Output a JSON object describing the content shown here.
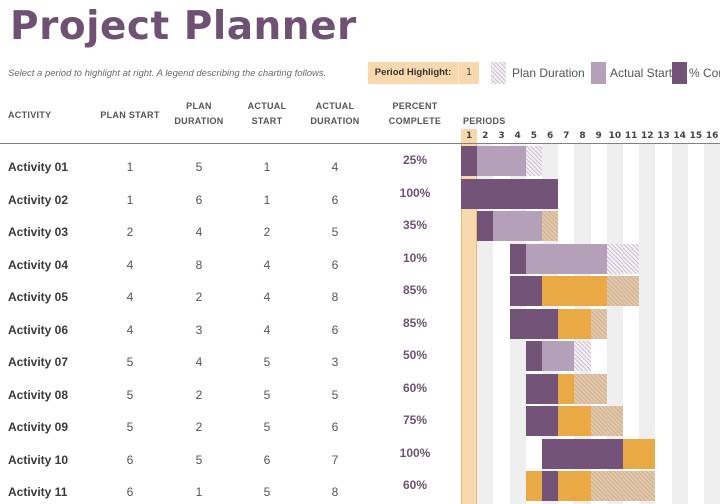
{
  "title": "Project Planner",
  "subtitle": "Select a period to highlight at right.  A legend describing the charting follows.",
  "period_highlight": {
    "label": "Period Highlight:",
    "value": "1"
  },
  "legend": [
    {
      "label": "Plan Duration",
      "code": "P"
    },
    {
      "label": "Actual Start",
      "code": "A"
    },
    {
      "label": "% Complete",
      "code": "D"
    }
  ],
  "headers": {
    "activity": "ACTIVITY",
    "plan_start": "PLAN START",
    "plan_duration": [
      "PLAN",
      "DURATION"
    ],
    "actual_start": [
      "ACTUAL",
      "START"
    ],
    "actual_duration": [
      "ACTUAL",
      "DURATION"
    ],
    "percent_complete": [
      "PERCENT",
      "COMPLETE"
    ],
    "periods": "PERIODS"
  },
  "periods": [
    "1",
    "2",
    "3",
    "4",
    "5",
    "6",
    "7",
    "8",
    "9",
    "10",
    "11",
    "12",
    "13",
    "14",
    "15",
    "16"
  ],
  "colors": {
    "accent": "#6f5273",
    "plan": "#cfc3d3",
    "actual": "#b4a0b9",
    "complete": "#735377",
    "beyond_complete": "#e9a945",
    "beyond_actual": "#d6b99a",
    "highlight": "#f8d9ae"
  },
  "gantt_legend_codes": {
    "P": "plan duration",
    "A": "actual",
    "D": "% complete",
    "O": "% complete beyond plan",
    "T": "actual beyond plan"
  },
  "rows": [
    {
      "activity": "Activity 01",
      "plan_start": "1",
      "plan_duration": "5",
      "actual_start": "1",
      "actual_duration": "4",
      "percent": "25%",
      "cells": "DAAAP..........."
    },
    {
      "activity": "Activity 02",
      "plan_start": "1",
      "plan_duration": "6",
      "actual_start": "1",
      "actual_duration": "6",
      "percent": "100%",
      "cells": "DDDDDD.........."
    },
    {
      "activity": "Activity 03",
      "plan_start": "2",
      "plan_duration": "4",
      "actual_start": "2",
      "actual_duration": "5",
      "percent": "35%",
      "cells": ".DAAAT.........."
    },
    {
      "activity": "Activity 04",
      "plan_start": "4",
      "plan_duration": "8",
      "actual_start": "4",
      "actual_duration": "6",
      "percent": "10%",
      "cells": "...DAAAAAPP....."
    },
    {
      "activity": "Activity 05",
      "plan_start": "4",
      "plan_duration": "2",
      "actual_start": "4",
      "actual_duration": "8",
      "percent": "85%",
      "cells": "...DDOOOOTT....."
    },
    {
      "activity": "Activity 06",
      "plan_start": "4",
      "plan_duration": "3",
      "actual_start": "4",
      "actual_duration": "6",
      "percent": "85%",
      "cells": "...DDDOOT......."
    },
    {
      "activity": "Activity 07",
      "plan_start": "5",
      "plan_duration": "4",
      "actual_start": "5",
      "actual_duration": "3",
      "percent": "50%",
      "cells": "....DAAP........"
    },
    {
      "activity": "Activity 08",
      "plan_start": "5",
      "plan_duration": "2",
      "actual_start": "5",
      "actual_duration": "5",
      "percent": "60%",
      "cells": "....DDOTT......."
    },
    {
      "activity": "Activity 09",
      "plan_start": "5",
      "plan_duration": "2",
      "actual_start": "5",
      "actual_duration": "6",
      "percent": "75%",
      "cells": "....DDOOTT......"
    },
    {
      "activity": "Activity 10",
      "plan_start": "6",
      "plan_duration": "5",
      "actual_start": "6",
      "actual_duration": "7",
      "percent": "100%",
      "cells": ".....DDDDDOO...."
    },
    {
      "activity": "Activity 11",
      "plan_start": "6",
      "plan_duration": "1",
      "actual_start": "5",
      "actual_duration": "8",
      "percent": "60%",
      "cells": "....ODOOTTTT...."
    }
  ]
}
